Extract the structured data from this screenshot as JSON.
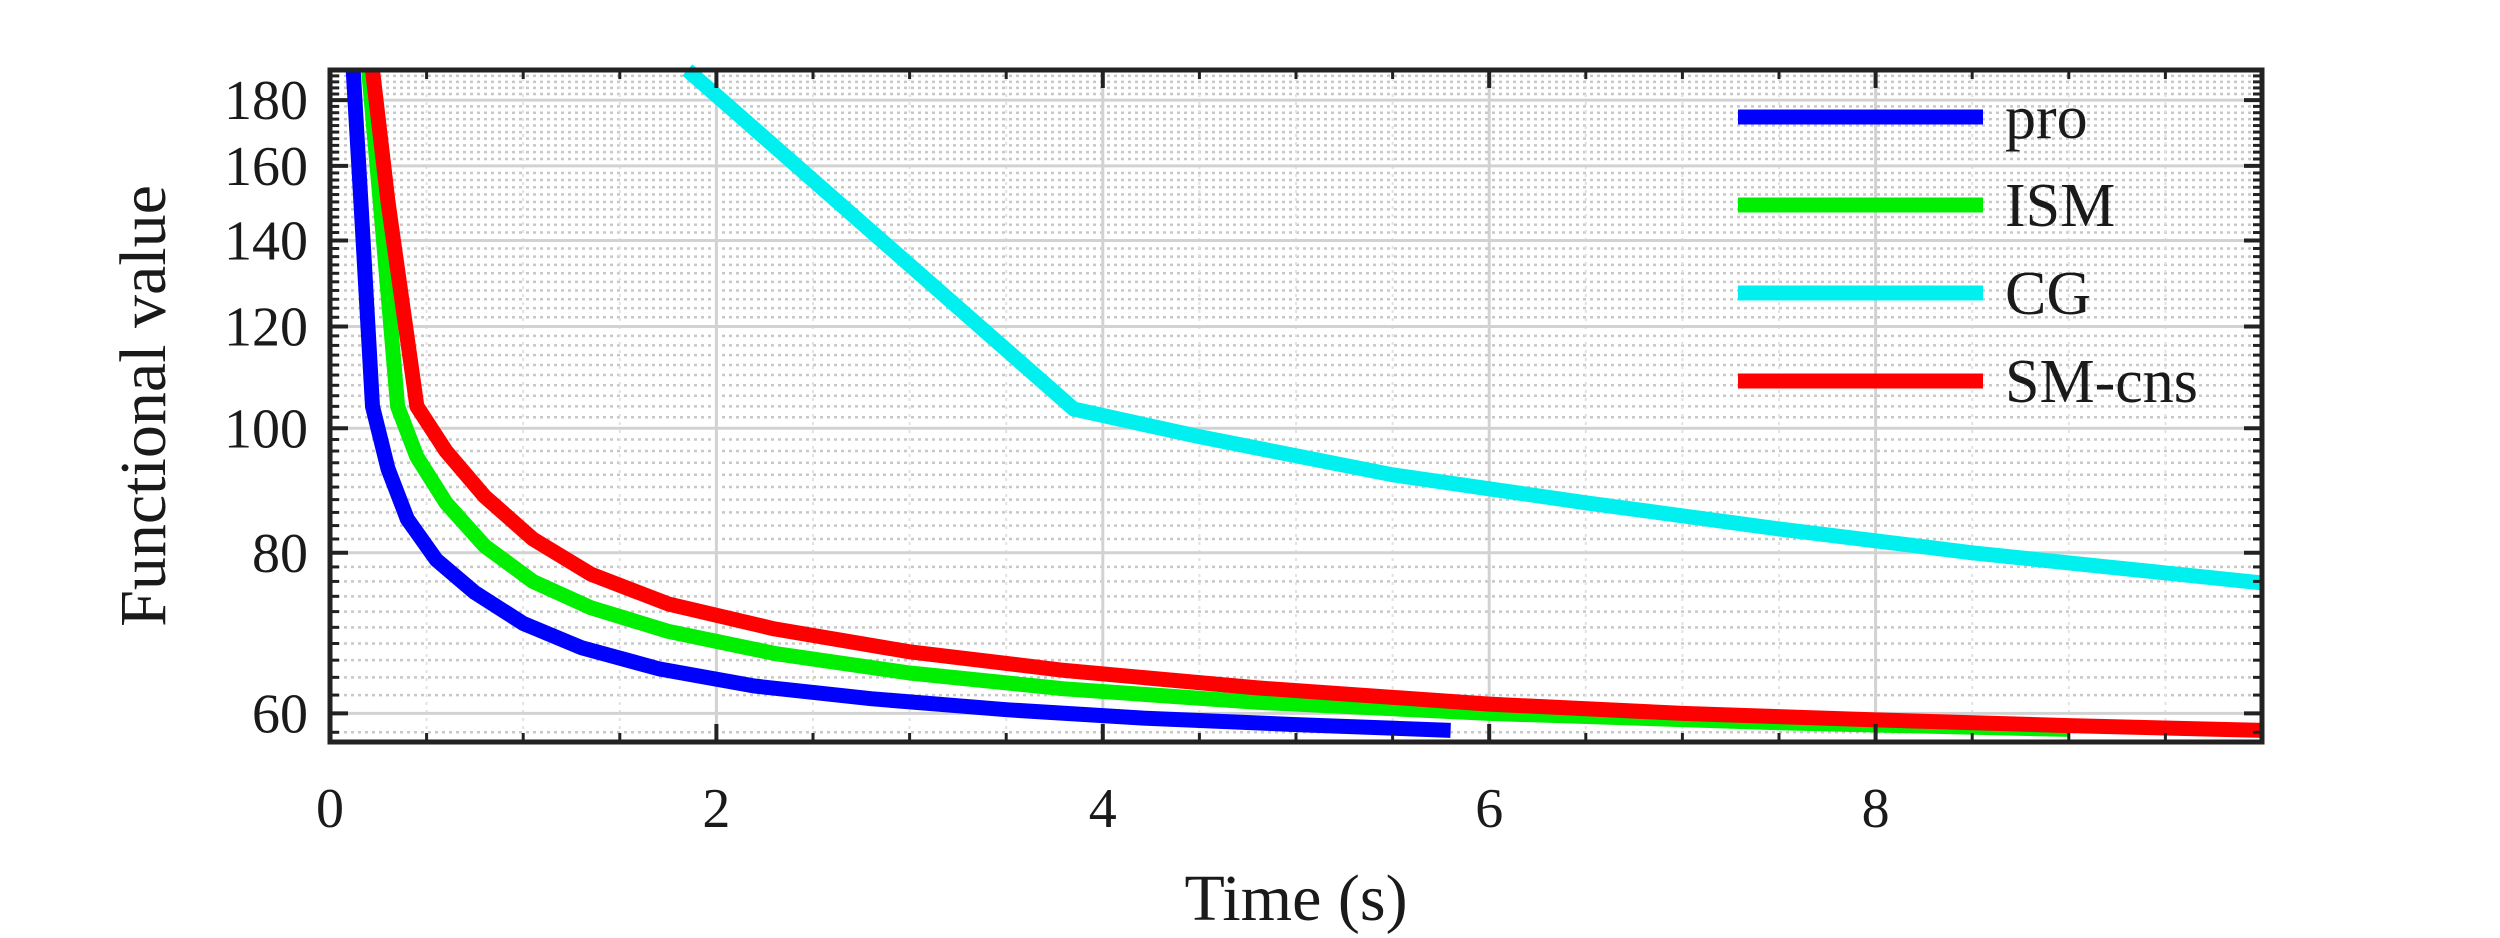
{
  "chart_data": {
    "type": "line",
    "title": "",
    "xlabel": "Time (s)",
    "ylabel": "Functional value",
    "xlim": [
      0,
      10
    ],
    "ylim": [
      57,
      190
    ],
    "yscale": "log",
    "grid": true,
    "minor_grid": true,
    "legend_position": "top-right",
    "x_ticks": [
      0,
      2,
      4,
      6,
      8
    ],
    "y_ticks": [
      60,
      80,
      100,
      120,
      140,
      160,
      180
    ],
    "series": [
      {
        "name": "pro",
        "color": "#0000ff",
        "x": [
          0.12,
          0.16,
          0.22,
          0.3,
          0.4,
          0.55,
          0.75,
          1.0,
          1.3,
          1.7,
          2.2,
          2.8,
          3.5,
          4.2,
          5.0,
          5.8
        ],
        "y": [
          190,
          150,
          104,
          93,
          85,
          79,
          74.5,
          70.5,
          67.5,
          65,
          63,
          61.6,
          60.4,
          59.5,
          58.8,
          58.2
        ]
      },
      {
        "name": "ISM",
        "color": "#00ee00",
        "x": [
          0.2,
          0.26,
          0.35,
          0.45,
          0.6,
          0.8,
          1.05,
          1.35,
          1.75,
          2.3,
          3.0,
          3.8,
          4.8,
          6.0,
          7.5,
          9.0
        ],
        "y": [
          190,
          150,
          104,
          95,
          87.5,
          81,
          76,
          72.5,
          69.5,
          66.8,
          64.5,
          62.7,
          61.2,
          60,
          59,
          58.3
        ]
      },
      {
        "name": "CG",
        "color": "#00f0f0",
        "x": [
          1.85,
          3.85,
          4.5,
          5.5,
          6.5,
          7.5,
          8.5,
          9.2,
          10.0
        ],
        "y": [
          190,
          103.5,
          98.5,
          92,
          87.5,
          83.5,
          80,
          78,
          75.8
        ]
      },
      {
        "name": "SM-cns",
        "color": "#ff0000",
        "x": [
          0.22,
          0.3,
          0.45,
          0.6,
          0.8,
          1.05,
          1.35,
          1.75,
          2.3,
          3.0,
          3.8,
          4.8,
          6.0,
          7.0,
          8.0,
          9.0,
          10.0
        ],
        "y": [
          190,
          150,
          104,
          96,
          88.5,
          82,
          77,
          73,
          69.8,
          67,
          64.8,
          62.8,
          61,
          60,
          59.3,
          58.7,
          58.2
        ]
      }
    ]
  }
}
